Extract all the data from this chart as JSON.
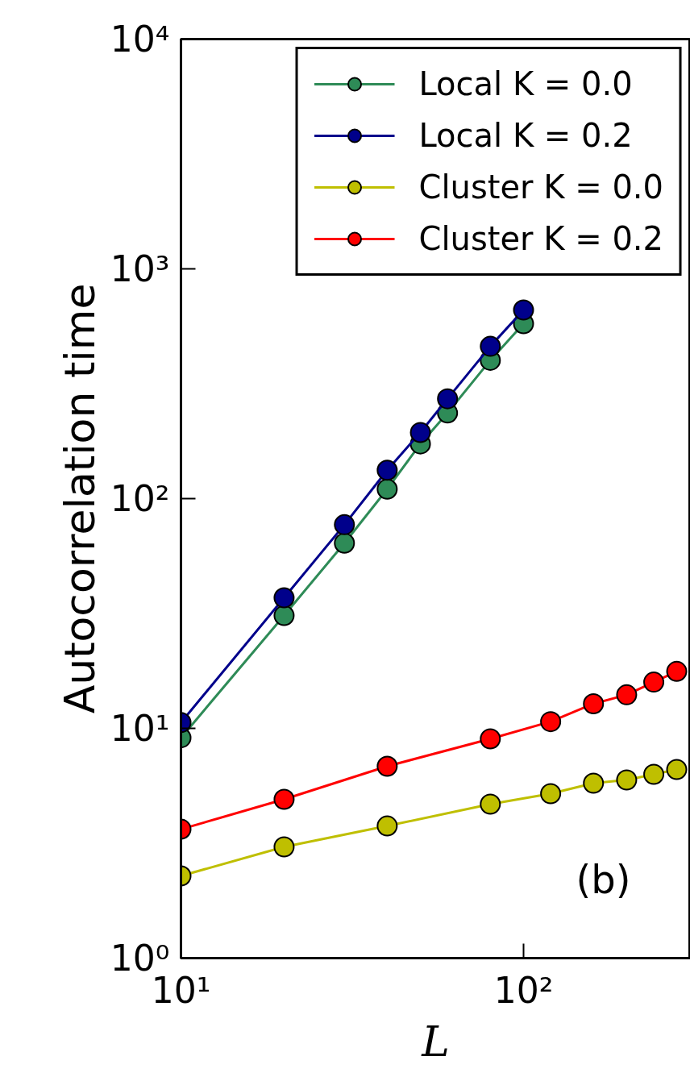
{
  "chart_data": {
    "type": "line",
    "xlabel": "L",
    "ylabel": "Autocorrelation time",
    "log": "xy",
    "marker": "circle",
    "line_style": "solid",
    "grid": false,
    "legend": "top right",
    "xlim": [
      10,
      307
    ],
    "xticks": [
      {
        "value": 10,
        "label": "10¹"
      },
      {
        "value": 100,
        "label": "10²"
      }
    ],
    "ylim": [
      1,
      10000
    ],
    "yticks": [
      {
        "value": 1,
        "label": "10⁰"
      },
      {
        "value": 10,
        "label": "10¹"
      },
      {
        "value": 100,
        "label": "10²"
      },
      {
        "value": 1000,
        "label": "10³"
      },
      {
        "value": 10000,
        "label": "10⁴"
      }
    ],
    "annotations": [
      "(b)"
    ],
    "series": [
      {
        "name": "Local K = 0.0",
        "color": "#2e8b57",
        "x": [
          10,
          20,
          30,
          40,
          50,
          60,
          80,
          100
        ],
        "values": [
          9.1,
          31,
          64,
          110,
          173,
          236,
          400,
          577
        ]
      },
      {
        "name": "Local K = 0.2",
        "color": "#00008b",
        "x": [
          10,
          20,
          30,
          40,
          50,
          60,
          80,
          100
        ],
        "values": [
          10.6,
          37,
          77,
          133,
          194,
          272,
          460,
          662
        ]
      },
      {
        "name": "Cluster K = 0.0",
        "color": "#bfbf00",
        "x": [
          10,
          20,
          40,
          80,
          120,
          160,
          200,
          240,
          280
        ],
        "values": [
          2.28,
          3.05,
          3.76,
          4.68,
          5.2,
          5.77,
          5.96,
          6.31,
          6.62
        ]
      },
      {
        "name": "Cluster K = 0.2",
        "color": "#ff0000",
        "x": [
          10,
          20,
          40,
          80,
          120,
          160,
          200,
          240,
          280
        ],
        "values": [
          3.64,
          4.91,
          6.84,
          9.0,
          10.7,
          12.8,
          14.0,
          15.9,
          17.7
        ]
      }
    ]
  }
}
